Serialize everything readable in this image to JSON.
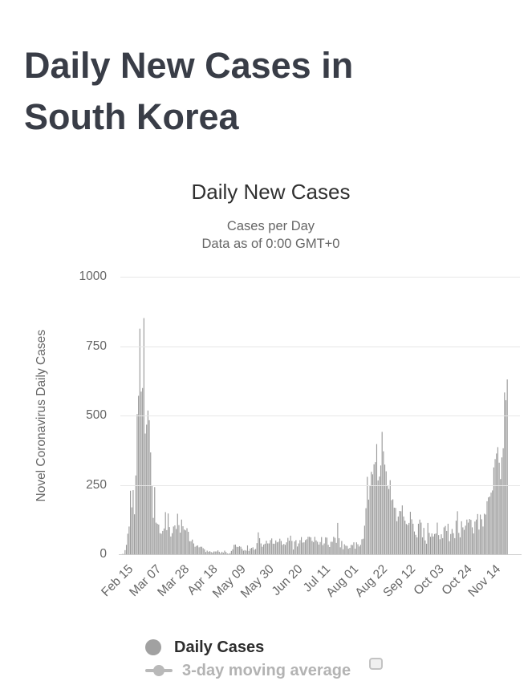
{
  "page": {
    "title": "Daily New Cases in South Korea"
  },
  "chart": {
    "title": "Daily New Cases",
    "subtitle_line1": "Cases per Day",
    "subtitle_line2": "Data as of 0:00 GMT+0",
    "y_axis_title": "Novel Coronavirus Daily Cases",
    "colors": {
      "bar": "#999999",
      "grid": "#e7e7e7",
      "axis_line": "#cccccc",
      "axis_label": "#666666",
      "title_text": "#303030",
      "page_title_text": "#393d47"
    }
  },
  "legend": {
    "items": [
      {
        "label": "Daily Cases",
        "marker": "circle",
        "marker_color": "#a1a1a1",
        "text_color": "#2d2d2d",
        "hidden": false
      },
      {
        "label": "3-day moving average",
        "marker": "line-circle",
        "marker_color": "#b9b9b9",
        "text_color": "#b3b3b3",
        "hidden": true,
        "checkbox": true
      }
    ]
  },
  "chart_data": {
    "type": "bar",
    "title": "Daily New Cases",
    "subtitle": [
      "Cases per Day",
      "Data as of 0:00 GMT+0"
    ],
    "xlabel": "",
    "ylabel": "Novel Coronavirus Daily Cases",
    "ylim": [
      0,
      1000
    ],
    "y_ticks": [
      0,
      250,
      500,
      750,
      1000
    ],
    "grid": "horizontal",
    "legend_position": "bottom",
    "start_date": "Feb 15",
    "end_date": "Nov 28",
    "x_tick_interval_days": 21,
    "x_tick_labels": [
      "Feb 15",
      "Mar 07",
      "Mar 28",
      "Apr 18",
      "May 09",
      "May 30",
      "Jun 20",
      "Jul 11",
      "Aug 01",
      "Aug 22",
      "Sep 12",
      "Oct 03",
      "Oct 24",
      "Nov 14"
    ],
    "series": [
      {
        "name": "Daily Cases",
        "values": [
          0,
          1,
          1,
          15,
          34,
          74,
          100,
          229,
          169,
          231,
          144,
          284,
          505,
          571,
          813,
          586,
          599,
          851,
          435,
          467,
          518,
          483,
          367,
          248,
          131,
          242,
          114,
          110,
          107,
          76,
          74,
          84,
          93,
          152,
          87,
          147,
          98,
          64,
          76,
          100,
          104,
          91,
          146,
          105,
          78,
          125,
          101,
          89,
          86,
          94,
          81,
          47,
          47,
          53,
          39,
          27,
          30,
          32,
          25,
          27,
          27,
          22,
          18,
          8,
          13,
          9,
          11,
          8,
          6,
          10,
          10,
          10,
          14,
          9,
          4,
          9,
          6,
          13,
          8,
          3,
          2,
          4,
          12,
          18,
          34,
          35,
          27,
          26,
          29,
          27,
          19,
          13,
          15,
          13,
          32,
          12,
          20,
          23,
          25,
          16,
          19,
          40,
          79,
          58,
          39,
          27,
          35,
          38,
          49,
          39,
          39,
          51,
          57,
          38,
          38,
          50,
          43,
          45,
          56,
          48,
          34,
          37,
          34,
          43,
          59,
          49,
          67,
          48,
          17,
          46,
          51,
          28,
          39,
          51,
          62,
          42,
          43,
          51,
          54,
          63,
          63,
          61,
          48,
          44,
          63,
          50,
          45,
          35,
          44,
          62,
          33,
          39,
          61,
          60,
          34,
          26,
          45,
          45,
          63,
          59,
          41,
          113,
          58,
          25,
          48,
          18,
          36,
          31,
          30,
          20,
          23,
          34,
          33,
          43,
          20,
          43,
          36,
          28,
          34,
          54,
          56,
          103,
          166,
          279,
          197,
          246,
          297,
          288,
          324,
          332,
          397,
          266,
          280,
          320,
          441,
          371,
          323,
          299,
          248,
          235,
          267,
          195,
          198,
          168,
          167,
          119,
          136,
          156,
          155,
          176,
          136,
          121,
          109,
          106,
          113,
          153,
          126,
          110,
          82,
          70,
          61,
          110,
          125,
          114,
          61,
          95,
          50,
          38,
          113,
          77,
          63,
          75,
          64,
          73,
          75,
          114,
          69,
          54,
          72,
          58,
          97,
          102,
          84,
          110,
          47,
          73,
          91,
          76,
          58,
          121,
          155,
          77,
          61,
          119,
          97,
          88,
          103,
          125,
          114,
          127,
          124,
          97,
          75,
          118,
          125,
          145,
          89,
          143,
          126,
          100,
          146,
          143,
          191,
          205,
          208,
          222,
          230,
          313,
          343,
          363,
          386,
          330,
          271,
          349,
          382,
          583,
          555,
          630
        ]
      },
      {
        "name": "3-day moving average",
        "visible": false
      }
    ]
  }
}
